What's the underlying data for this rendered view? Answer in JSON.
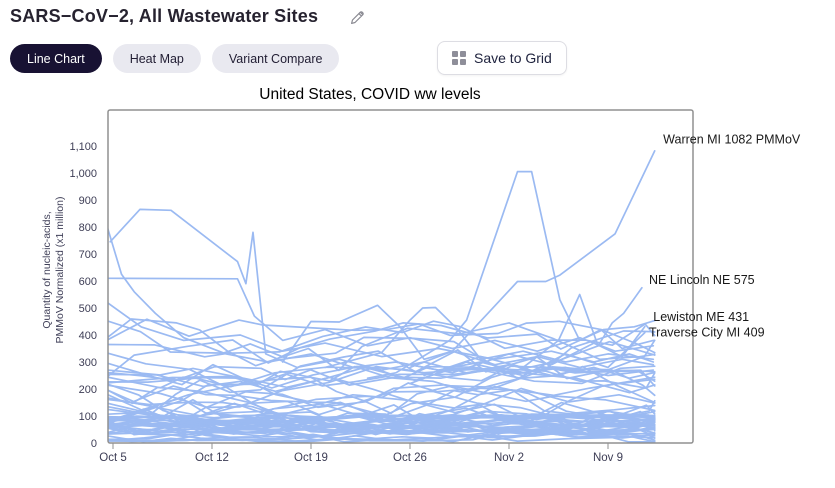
{
  "header": {
    "title": "SARS−CoV−2, All Wastewater Sites"
  },
  "tabs": [
    {
      "label": "Line Chart",
      "active": true
    },
    {
      "label": "Heat Map",
      "active": false
    },
    {
      "label": "Variant Compare",
      "active": false
    }
  ],
  "save_button": {
    "label": "Save to Grid"
  },
  "colors": {
    "active_tab_bg": "#181233",
    "inactive_tab_bg": "#e9e9f0",
    "line_color": "#9bbaf2",
    "plot_border": "#909090",
    "tick_text": "#3d3d55",
    "annotation_text": "#191919"
  },
  "chart_data": {
    "type": "line",
    "title": "United States, COVID ww levels",
    "ylabel_lines": [
      "Quantity of nucleic-acids,",
      "PMMoV Normalized (x1 million)"
    ],
    "yticks": [
      0,
      100,
      200,
      300,
      400,
      500,
      600,
      700,
      800,
      900,
      1000,
      1100
    ],
    "ylim": [
      0,
      1232
    ],
    "x_ticks": [
      "Oct 5",
      "Oct 12",
      "Oct 19",
      "Oct 26",
      "Nov 2",
      "Nov 9"
    ],
    "x_tick_interval_days": 7,
    "x_domain_days": [
      -0.4,
      38.5
    ],
    "grid": false,
    "legend": false,
    "line_color": "#9bbaf2",
    "annotations": [
      {
        "text": "Warren MI 1082 PMMoV",
        "day": 38.9,
        "value": 1110
      },
      {
        "text": "NE Lincoln NE 575",
        "day": 37.9,
        "value": 588
      },
      {
        "text": "Lewiston ME 431",
        "day": 38.2,
        "value": 452
      },
      {
        "text": "Traverse City MI 409",
        "day": 37.9,
        "value": 395
      }
    ],
    "featured_series": [
      {
        "name": "left descender ~800",
        "points": [
          [
            -0.4,
            800
          ],
          [
            0.6,
            625
          ],
          [
            1.5,
            560
          ],
          [
            3,
            480
          ],
          [
            5,
            390
          ],
          [
            8,
            330
          ],
          [
            11,
            300
          ],
          [
            14,
            330
          ],
          [
            17,
            280
          ],
          [
            20,
            300
          ],
          [
            23,
            270
          ],
          [
            26,
            300
          ],
          [
            29,
            260
          ],
          [
            32,
            280
          ],
          [
            35,
            250
          ],
          [
            38.2,
            270
          ]
        ]
      },
      {
        "name": "plateau ~860 with 780 spike",
        "points": [
          [
            -0.2,
            745
          ],
          [
            1.9,
            865
          ],
          [
            4.1,
            862
          ],
          [
            8.8,
            672
          ],
          [
            9.4,
            590
          ],
          [
            9.9,
            780
          ],
          [
            10.8,
            330
          ],
          [
            13,
            280
          ],
          [
            16,
            310
          ],
          [
            19,
            270
          ],
          [
            22,
            300
          ],
          [
            25,
            260
          ],
          [
            28,
            290
          ],
          [
            31,
            250
          ],
          [
            34,
            280
          ],
          [
            36.5,
            240
          ],
          [
            38.2,
            260
          ]
        ]
      },
      {
        "name": "flat ~610",
        "points": [
          [
            -0.4,
            610
          ],
          [
            8.8,
            608
          ],
          [
            10,
            470
          ],
          [
            12,
            380
          ],
          [
            15,
            420
          ],
          [
            18,
            360
          ],
          [
            21,
            390
          ],
          [
            24,
            350
          ],
          [
            27,
            380
          ],
          [
            30,
            340
          ],
          [
            33,
            390
          ],
          [
            35.5,
            340
          ],
          [
            38.2,
            360
          ]
        ]
      },
      {
        "name": "left ~520",
        "points": [
          [
            -0.4,
            520
          ],
          [
            2,
            430
          ],
          [
            5,
            380
          ],
          [
            9,
            400
          ],
          [
            12,
            340
          ],
          [
            15,
            370
          ],
          [
            19,
            320
          ],
          [
            23,
            350
          ],
          [
            27,
            310
          ],
          [
            31,
            340
          ],
          [
            34,
            300
          ],
          [
            36.5,
            330
          ],
          [
            38.2,
            300
          ]
        ]
      },
      {
        "name": "Nov 2 peak ~1005",
        "points": [
          [
            18,
            240
          ],
          [
            20,
            260
          ],
          [
            23.8,
            380
          ],
          [
            25,
            455
          ],
          [
            28.6,
            1005
          ],
          [
            29.6,
            1005
          ],
          [
            31.6,
            530
          ],
          [
            33,
            380
          ],
          [
            34.5,
            420
          ],
          [
            36,
            350
          ],
          [
            38.2,
            380
          ]
        ]
      },
      {
        "name": "Warren MI (1082)",
        "points": [
          [
            21,
            280
          ],
          [
            24,
            340
          ],
          [
            26.5,
            480
          ],
          [
            28.6,
            598
          ],
          [
            30.6,
            598
          ],
          [
            31.6,
            622
          ],
          [
            35.5,
            775
          ],
          [
            38.3,
            1082
          ]
        ]
      },
      {
        "name": "NE Lincoln NE (575)",
        "points": [
          [
            22,
            250
          ],
          [
            26,
            320
          ],
          [
            29,
            280
          ],
          [
            31.5,
            380
          ],
          [
            33,
            550
          ],
          [
            34.3,
            360
          ],
          [
            35.3,
            445
          ],
          [
            36.1,
            480
          ],
          [
            37.4,
            575
          ]
        ]
      },
      {
        "name": "Lewiston ME (431)",
        "points": [
          [
            20,
            300
          ],
          [
            24,
            260
          ],
          [
            28,
            330
          ],
          [
            31,
            290
          ],
          [
            34,
            370
          ],
          [
            36,
            320
          ],
          [
            37.6,
            431
          ]
        ]
      },
      {
        "name": "Traverse City MI (409)",
        "points": [
          [
            21,
            220
          ],
          [
            25,
            300
          ],
          [
            29,
            250
          ],
          [
            32,
            330
          ],
          [
            35,
            280
          ],
          [
            37.6,
            409
          ]
        ]
      },
      {
        "name": "Oct 23 peak ~510",
        "points": [
          [
            12,
            300
          ],
          [
            14,
            450
          ],
          [
            16,
            448
          ],
          [
            18.7,
            510
          ],
          [
            20.3,
            430
          ],
          [
            22,
            310
          ],
          [
            24,
            340
          ],
          [
            27,
            290
          ],
          [
            30,
            320
          ],
          [
            33,
            280
          ],
          [
            36,
            310
          ],
          [
            38.2,
            290
          ]
        ]
      },
      {
        "name": "Oct 26 peak ~500",
        "points": [
          [
            15,
            280
          ],
          [
            19,
            335
          ],
          [
            21,
            455
          ],
          [
            21.9,
            500
          ],
          [
            22.8,
            502
          ],
          [
            24.3,
            425
          ],
          [
            26,
            310
          ],
          [
            29,
            340
          ],
          [
            32,
            300
          ],
          [
            35,
            330
          ],
          [
            38.2,
            310
          ]
        ]
      }
    ],
    "background_series": {
      "description": "dense ensemble of wastewater site traces, values mostly 0-350",
      "seed": 42,
      "day_start": -0.4,
      "day_end": 38.3,
      "dx_base": 1.6,
      "dx_rand": 2.2,
      "groups": [
        {
          "count": 26,
          "min": 4,
          "max": 105,
          "step": 26
        },
        {
          "count": 25,
          "min": 30,
          "max": 285,
          "step": 60
        },
        {
          "count": 10,
          "min": 80,
          "max": 460,
          "step": 90
        }
      ]
    }
  }
}
